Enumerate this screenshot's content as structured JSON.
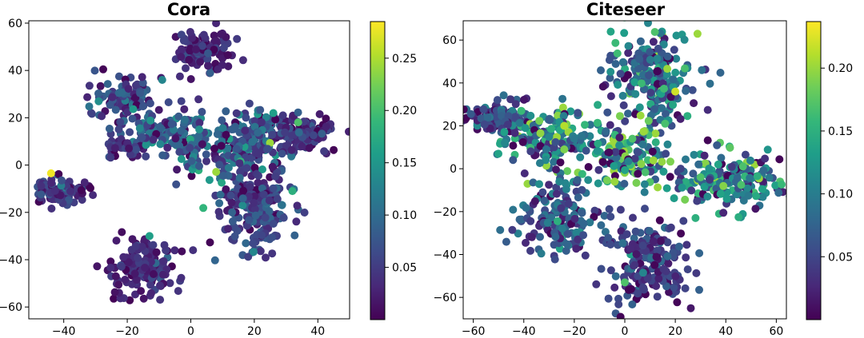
{
  "chart_data": [
    {
      "type": "scatter",
      "title": "Cora",
      "xlabel": "",
      "ylabel": "",
      "xlim": [
        -51,
        50
      ],
      "ylim": [
        -65,
        61
      ],
      "xticks": [
        "−40",
        "−20",
        "0",
        "20",
        "40"
      ],
      "xtick_values": [
        -40,
        -20,
        0,
        20,
        40
      ],
      "yticks": [
        "60",
        "40",
        "20",
        "0",
        "−20",
        "−40",
        "−60"
      ],
      "ytick_values": [
        60,
        40,
        20,
        0,
        -20,
        -40,
        -60
      ],
      "colormap": "viridis",
      "colorbar": {
        "range": [
          0.0,
          0.285
        ],
        "ticks": [
          "0.25",
          "0.20",
          "0.15",
          "0.10",
          "0.05"
        ],
        "tick_values": [
          0.25,
          0.2,
          0.15,
          0.1,
          0.05
        ]
      },
      "clusters": [
        {
          "name": "top",
          "cx": 4,
          "cy": 48,
          "sx": 4.5,
          "sy": 5,
          "n": 110,
          "vmean": 0.03
        },
        {
          "name": "top-left",
          "cx": -21,
          "cy": 27,
          "sx": 5,
          "sy": 5.5,
          "n": 110,
          "vmean": 0.05
        },
        {
          "name": "upper-middle",
          "cx": -8,
          "cy": 15,
          "sx": 7,
          "sy": 4,
          "n": 80,
          "vmean": 0.07
        },
        {
          "name": "mid-left-arm",
          "cx": -20,
          "cy": 8,
          "sx": 4,
          "sy": 2.5,
          "n": 45,
          "vmean": 0.04
        },
        {
          "name": "center",
          "cx": 8,
          "cy": 5,
          "sx": 8,
          "sy": 6,
          "n": 130,
          "vmean": 0.08
        },
        {
          "name": "right-arm",
          "cx": 35,
          "cy": 13,
          "sx": 6,
          "sy": 4,
          "n": 120,
          "vmean": 0.04
        },
        {
          "name": "right-upper",
          "cx": 22,
          "cy": 13,
          "sx": 6,
          "sy": 6,
          "n": 120,
          "vmean": 0.07
        },
        {
          "name": "lower-middle",
          "cx": 20,
          "cy": -17,
          "sx": 6,
          "sy": 9,
          "n": 230,
          "vmean": 0.05
        },
        {
          "name": "left-island",
          "cx": -42,
          "cy": -11,
          "sx": 4.5,
          "sy": 2.5,
          "n": 95,
          "vmean": 0.04
        },
        {
          "name": "bottom-left",
          "cx": -15,
          "cy": -44,
          "sx": 5,
          "sy": 6.5,
          "n": 150,
          "vmean": 0.03
        }
      ],
      "highlights": [
        {
          "x": -44,
          "y": -3.5,
          "v": 0.28
        },
        {
          "x": 32,
          "y": -11,
          "v": 0.18
        },
        {
          "x": -13,
          "y": -30,
          "v": 0.16
        },
        {
          "x": 26,
          "y": 22,
          "v": 0.16
        },
        {
          "x": -29,
          "y": 27,
          "v": 0.14
        },
        {
          "x": -9,
          "y": 36,
          "v": 0.13
        }
      ]
    },
    {
      "type": "scatter",
      "title": "Citeseer",
      "xlabel": "",
      "ylabel": "",
      "xlim": [
        -64,
        64
      ],
      "ylim": [
        -70,
        69
      ],
      "xticks": [
        "−60",
        "−40",
        "−20",
        "0",
        "20",
        "40",
        "60"
      ],
      "xtick_values": [
        -60,
        -40,
        -20,
        0,
        20,
        40,
        60
      ],
      "yticks": [
        "60",
        "40",
        "20",
        "0",
        "−20",
        "−40",
        "−60"
      ],
      "ytick_values": [
        60,
        40,
        20,
        0,
        -20,
        -40,
        -60
      ],
      "colormap": "viridis",
      "colorbar": {
        "range": [
          0.0,
          0.237
        ],
        "ticks": [
          "0.20",
          "0.15",
          "0.10",
          "0.05"
        ],
        "tick_values": [
          0.2,
          0.15,
          0.1,
          0.05
        ]
      },
      "clusters": [
        {
          "name": "top-arm",
          "cx": 10,
          "cy": 42,
          "sx": 9,
          "sy": 11,
          "n": 230,
          "vmean": 0.08
        },
        {
          "name": "left-arm-tip",
          "cx": -50,
          "cy": 24,
          "sx": 7,
          "sy": 4,
          "n": 120,
          "vmean": 0.05
        },
        {
          "name": "left-arm",
          "cx": -28,
          "cy": 14,
          "sx": 9,
          "sy": 7,
          "n": 150,
          "vmean": 0.1
        },
        {
          "name": "center",
          "cx": 0,
          "cy": 5,
          "sx": 8,
          "sy": 7,
          "n": 140,
          "vmean": 0.11
        },
        {
          "name": "right-arm",
          "cx": 40,
          "cy": -5,
          "sx": 10,
          "sy": 7,
          "n": 200,
          "vmean": 0.09
        },
        {
          "name": "bottom-left-arm",
          "cx": -26,
          "cy": -22,
          "sx": 8,
          "sy": 8,
          "n": 160,
          "vmean": 0.06
        },
        {
          "name": "bottom-arm",
          "cx": 9,
          "cy": -43,
          "sx": 8,
          "sy": 10,
          "n": 200,
          "vmean": 0.04
        }
      ],
      "highlights": [
        {
          "x": 20,
          "y": 36,
          "v": 0.22
        },
        {
          "x": -24,
          "y": 20,
          "v": 0.21
        },
        {
          "x": -24,
          "y": 9,
          "v": 0.19
        },
        {
          "x": -4,
          "y": -6,
          "v": 0.2
        },
        {
          "x": 3,
          "y": 14,
          "v": 0.17
        },
        {
          "x": -41,
          "y": 27,
          "v": 0.16
        },
        {
          "x": 30,
          "y": -4,
          "v": 0.17
        },
        {
          "x": 0,
          "y": -53,
          "v": 0.17
        },
        {
          "x": 28,
          "y": -23,
          "v": 0.15
        }
      ]
    }
  ]
}
